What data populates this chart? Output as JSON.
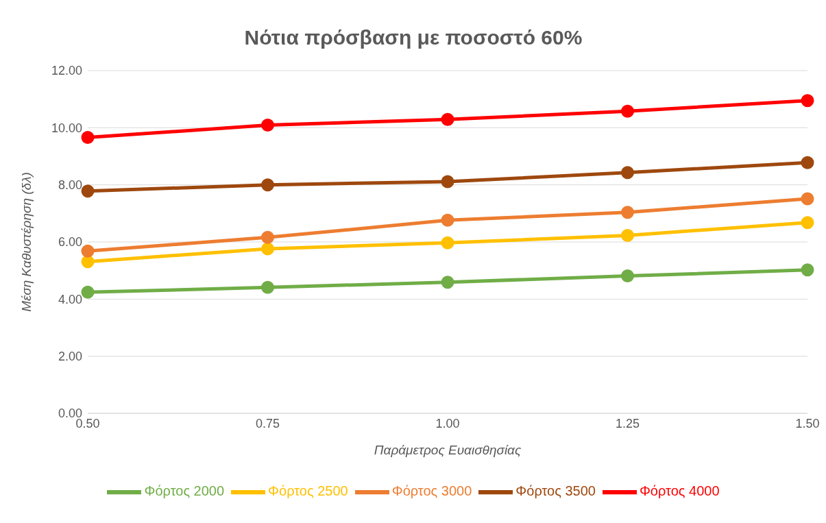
{
  "chart_data": {
    "type": "line",
    "title": "Νότια πρόσβαση με ποσοστό 60%",
    "xlabel": "Παράμετρος Ευαισθησίας",
    "ylabel": "Μέση Καθυστέρηση (δλ)",
    "categories": [
      "0.50",
      "0.75",
      "1.00",
      "1.25",
      "1.50"
    ],
    "series": [
      {
        "name": "Φόρτος 2000",
        "color": "#70ad47",
        "values": [
          4.24,
          4.41,
          4.59,
          4.81,
          5.02
        ]
      },
      {
        "name": "Φόρτος 2500",
        "color": "#ffc000",
        "values": [
          5.31,
          5.76,
          5.97,
          6.23,
          6.68
        ]
      },
      {
        "name": "Φόρτος 3000",
        "color": "#ed7d31",
        "values": [
          5.68,
          6.16,
          6.76,
          7.04,
          7.51
        ]
      },
      {
        "name": "Φόρτος 3500",
        "color": "#9e480e",
        "values": [
          7.78,
          8.0,
          8.11,
          8.43,
          8.78
        ]
      },
      {
        "name": "Φόρτος 4000",
        "color": "#ff0000",
        "values": [
          9.66,
          10.09,
          10.29,
          10.58,
          10.95
        ]
      }
    ],
    "ylim": [
      0,
      12
    ],
    "yticks": [
      {
        "value": 0,
        "label": "0.00"
      },
      {
        "value": 2,
        "label": "2.00"
      },
      {
        "value": 4,
        "label": "4.00"
      },
      {
        "value": 6,
        "label": "6.00"
      },
      {
        "value": 8,
        "label": "8.00"
      },
      {
        "value": 10,
        "label": "10.00"
      },
      {
        "value": 12,
        "label": "12.00"
      }
    ],
    "grid": "y",
    "legend": "bottom",
    "marker": "circle",
    "line_style": "solid"
  }
}
